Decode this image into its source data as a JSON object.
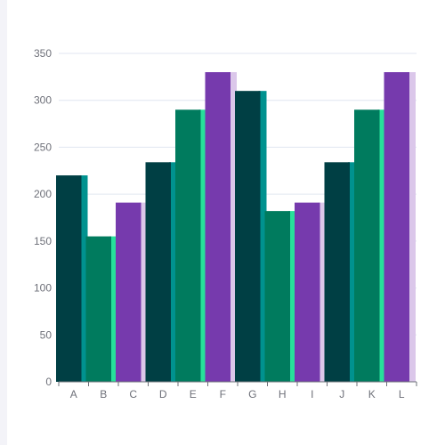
{
  "chart_data": {
    "type": "bar",
    "categories": [
      "A",
      "B",
      "C",
      "D",
      "E",
      "F",
      "G",
      "H",
      "I",
      "J",
      "K",
      "L"
    ],
    "values": [
      220,
      155,
      191,
      234,
      290,
      330,
      310,
      182,
      191,
      234,
      290,
      330
    ],
    "ylim": [
      0,
      350
    ],
    "yticks": [
      0,
      50,
      100,
      150,
      200,
      250,
      300,
      350
    ],
    "grid": true,
    "palette": [
      {
        "front": "#003f44",
        "side": "#00928f"
      },
      {
        "front": "#007b5e",
        "side": "#27e09a"
      },
      {
        "front": "#763aad",
        "side": "#dbc7ea"
      }
    ],
    "axis_color": "#6e7079",
    "grid_color": "#e0e6f1"
  }
}
